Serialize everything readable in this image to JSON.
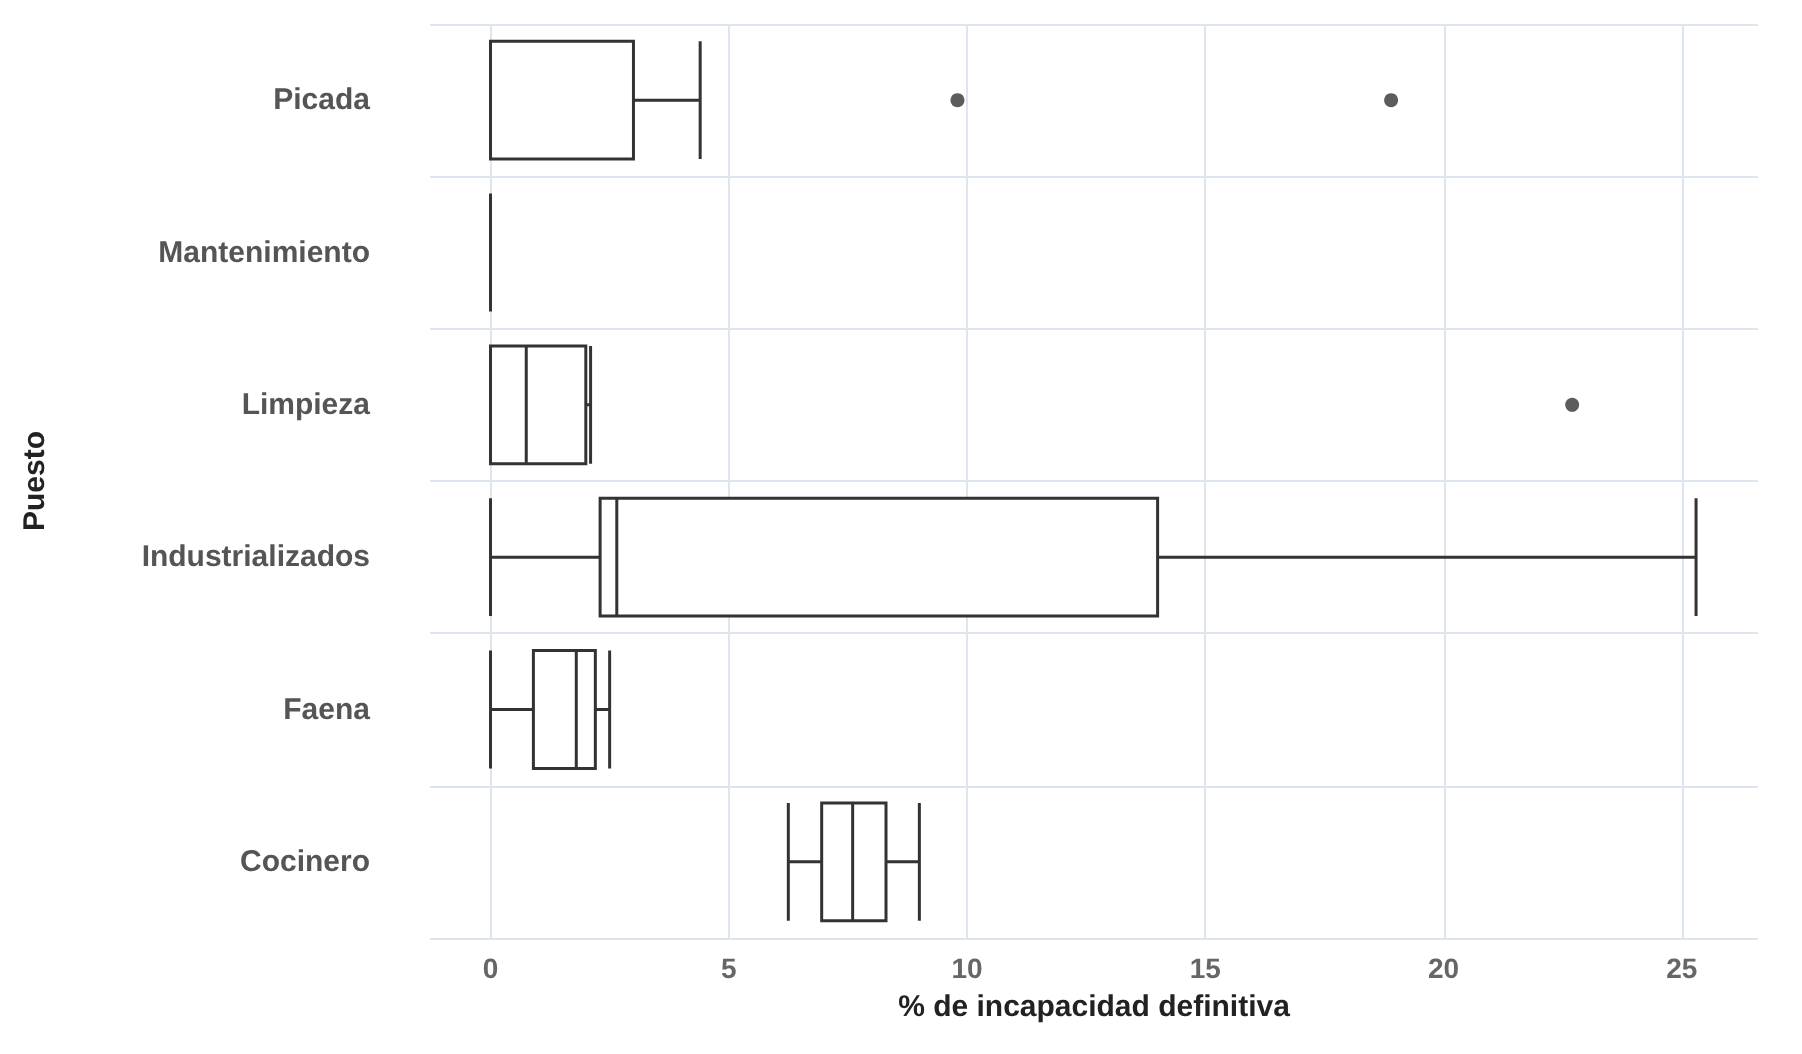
{
  "chart_data": {
    "type": "box",
    "orientation": "horizontal",
    "xlabel": "% de incapacidad definitiva",
    "ylabel": "Puesto",
    "categories": [
      "Picada",
      "Mantenimiento",
      "Limpieza",
      "Industrializados",
      "Faena",
      "Cocinero"
    ],
    "boxes": [
      {
        "low": 0,
        "q1": 0,
        "median": 0,
        "q3": 3.0,
        "high": 4.4,
        "outliers": [
          9.8,
          18.9
        ]
      },
      {
        "low": 0,
        "q1": 0,
        "median": 0,
        "q3": 0,
        "high": 0
      },
      {
        "low": 0,
        "q1": 0,
        "median": 0.75,
        "q3": 2.0,
        "high": 2.1,
        "outliers": [
          22.7
        ]
      },
      {
        "low": 0,
        "q1": 2.3,
        "median": 2.65,
        "q3": 14.0,
        "high": 25.3
      },
      {
        "low": 0,
        "q1": 0.9,
        "median": 1.8,
        "q3": 2.2,
        "high": 2.5
      },
      {
        "low": 6.25,
        "q1": 6.95,
        "median": 7.6,
        "q3": 8.3,
        "high": 9.0
      }
    ],
    "color": "#333333",
    "xlim": [
      -1.27,
      26.6
    ],
    "xticks": [
      0,
      5,
      10,
      15,
      20,
      25
    ],
    "grid": true
  }
}
